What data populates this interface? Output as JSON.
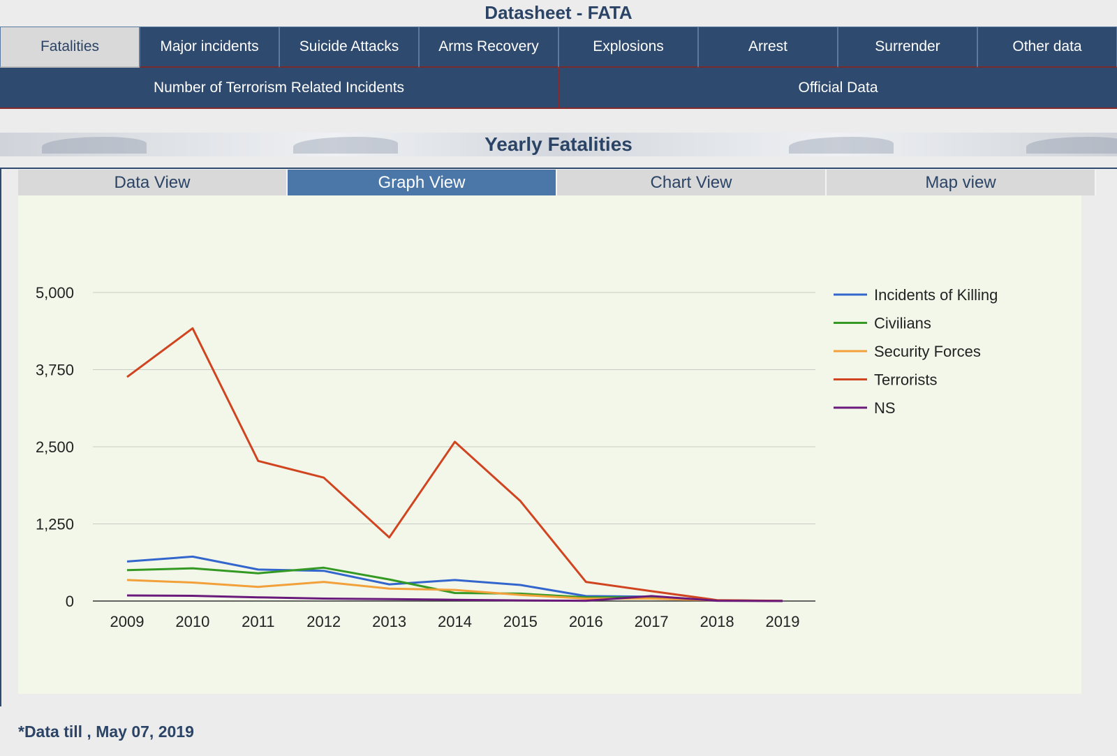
{
  "page": {
    "title": "Datasheet - FATA"
  },
  "nav": {
    "tabs": [
      {
        "label": "Fatalities",
        "active": true
      },
      {
        "label": "Major incidents",
        "active": false
      },
      {
        "label": "Suicide Attacks",
        "active": false
      },
      {
        "label": "Arms Recovery",
        "active": false
      },
      {
        "label": "Explosions",
        "active": false
      },
      {
        "label": "Arrest",
        "active": false
      },
      {
        "label": "Surrender",
        "active": false
      },
      {
        "label": "Other data",
        "active": false
      }
    ],
    "sub_tabs": [
      {
        "label": "Number of Terrorism Related Incidents"
      },
      {
        "label": "Official Data"
      }
    ]
  },
  "section": {
    "title": "Yearly Fatalities"
  },
  "view_tabs": [
    {
      "label": "Data View",
      "active": false
    },
    {
      "label": "Graph View",
      "active": true
    },
    {
      "label": "Chart View",
      "active": false
    },
    {
      "label": "Map view",
      "active": false
    }
  ],
  "footnote": "*Data till , May 07, 2019",
  "chart_data": {
    "type": "line",
    "x": [
      "2009",
      "2010",
      "2011",
      "2012",
      "2013",
      "2014",
      "2015",
      "2016",
      "2017",
      "2018",
      "2019"
    ],
    "ylim": [
      0,
      5000
    ],
    "yticks": [
      0,
      1250,
      2500,
      3750,
      5000
    ],
    "ytick_labels": [
      "0",
      "1,250",
      "2,500",
      "3,750",
      "5,000"
    ],
    "grid": true,
    "legend": "right",
    "series": [
      {
        "name": "Incidents of Killing",
        "color": "#3366cc",
        "values": [
          640,
          720,
          510,
          490,
          270,
          340,
          260,
          80,
          70,
          10,
          2
        ]
      },
      {
        "name": "Civilians",
        "color": "#339922",
        "values": [
          500,
          530,
          450,
          540,
          350,
          130,
          120,
          60,
          60,
          10,
          1
        ]
      },
      {
        "name": "Security Forces",
        "color": "#f2a03a",
        "values": [
          340,
          300,
          230,
          310,
          200,
          180,
          100,
          40,
          40,
          10,
          1
        ]
      },
      {
        "name": "Terrorists",
        "color": "#d04420",
        "values": [
          3630,
          4420,
          2270,
          2000,
          1030,
          2580,
          1620,
          310,
          160,
          15,
          2
        ]
      },
      {
        "name": "NS",
        "color": "#6a1a7a",
        "values": [
          90,
          85,
          60,
          40,
          30,
          20,
          10,
          5,
          80,
          5,
          0
        ]
      }
    ]
  }
}
